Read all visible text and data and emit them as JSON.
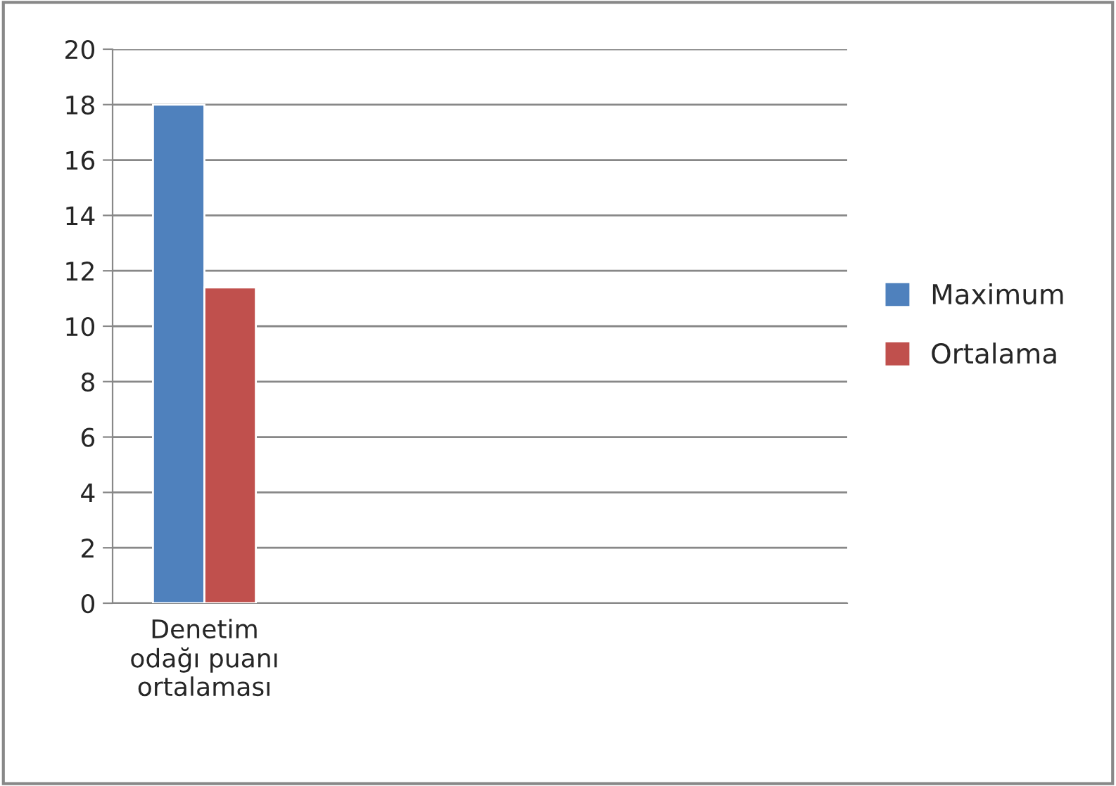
{
  "chart_data": {
    "type": "bar",
    "categories": [
      "Denetim\nodağı puanı\nortalaması",
      null,
      null,
      null
    ],
    "series": [
      {
        "name": "Maximum",
        "color": "#4f81bd",
        "values": [
          18,
          null,
          null,
          null
        ]
      },
      {
        "name": "Ortalama",
        "color": "#c0504d",
        "values": [
          11.4,
          null,
          null,
          null
        ]
      }
    ],
    "ylim": [
      0,
      20
    ],
    "yticks": [
      0,
      2,
      4,
      6,
      8,
      10,
      12,
      14,
      16,
      18,
      20
    ],
    "grid": "y",
    "legend": "right"
  }
}
